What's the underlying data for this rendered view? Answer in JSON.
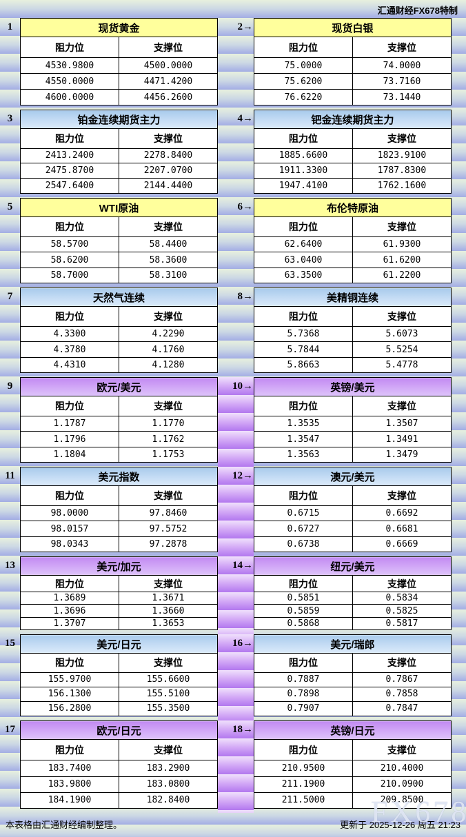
{
  "meta": {
    "top_right_label": "汇通财经FX678特制",
    "watermark": "FX678",
    "footer_left": "本表格由汇通财经编制整理。",
    "footer_right": "更新于 2025-12-26 周五 21:23"
  },
  "labels": {
    "resistance": "阻力位",
    "support": "支撑位"
  },
  "colors": {
    "title_yellow": "#ffff9c",
    "title_blue": "#b8d5f0",
    "title_purple": "#c48cf2",
    "stripe_green": "#e7f0de",
    "stripe_blue": "#a9b3e5",
    "stripe_purple": "#b77ff0",
    "cell_bg": "#ffffff",
    "border": "#000000"
  },
  "pairs": [
    {
      "left_label": "1",
      "right_label": "2→",
      "left": {
        "title": "现货黄金",
        "rows": [
          [
            "4530.9800",
            "4500.0000"
          ],
          [
            "4550.0000",
            "4471.4200"
          ],
          [
            "4600.0000",
            "4456.2600"
          ]
        ]
      },
      "right": {
        "title": "现货白银",
        "rows": [
          [
            "75.0000",
            "74.0000"
          ],
          [
            "75.6200",
            "73.7160"
          ],
          [
            "76.6220",
            "73.1440"
          ]
        ]
      }
    },
    {
      "left_label": "3",
      "right_label": "4→",
      "left": {
        "title": "铂金连续期货主力",
        "rows": [
          [
            "2413.2400",
            "2278.8400"
          ],
          [
            "2475.8700",
            "2207.0700"
          ],
          [
            "2547.6400",
            "2144.4400"
          ]
        ]
      },
      "right": {
        "title": "钯金连续期货主力",
        "rows": [
          [
            "1885.6600",
            "1823.9100"
          ],
          [
            "1911.3300",
            "1787.8300"
          ],
          [
            "1947.4100",
            "1762.1600"
          ]
        ]
      }
    },
    {
      "left_label": "5",
      "right_label": "6→",
      "left": {
        "title": "WTI原油",
        "rows": [
          [
            "58.5700",
            "58.4400"
          ],
          [
            "58.6200",
            "58.3600"
          ],
          [
            "58.7000",
            "58.3100"
          ]
        ]
      },
      "right": {
        "title": "布伦特原油",
        "rows": [
          [
            "62.6400",
            "61.9300"
          ],
          [
            "63.0400",
            "61.6200"
          ],
          [
            "63.3500",
            "61.2200"
          ]
        ]
      }
    },
    {
      "left_label": "7",
      "right_label": "8→",
      "left": {
        "title": "天然气连续",
        "rows": [
          [
            "4.3300",
            "4.2290"
          ],
          [
            "4.3780",
            "4.1760"
          ],
          [
            "4.4310",
            "4.1280"
          ]
        ]
      },
      "right": {
        "title": "美精铜连续",
        "rows": [
          [
            "5.7368",
            "5.6073"
          ],
          [
            "5.7844",
            "5.5254"
          ],
          [
            "5.8663",
            "5.4778"
          ]
        ]
      }
    },
    {
      "left_label": "9",
      "right_label": "10→",
      "left": {
        "title": "欧元/美元",
        "rows": [
          [
            "1.1787",
            "1.1770"
          ],
          [
            "1.1796",
            "1.1762"
          ],
          [
            "1.1804",
            "1.1753"
          ]
        ]
      },
      "right": {
        "title": "英镑/美元",
        "rows": [
          [
            "1.3535",
            "1.3507"
          ],
          [
            "1.3547",
            "1.3491"
          ],
          [
            "1.3563",
            "1.3479"
          ]
        ]
      }
    },
    {
      "left_label": "11",
      "right_label": "12→",
      "left": {
        "title": "美元指数",
        "rows": [
          [
            "98.0000",
            "97.8460"
          ],
          [
            "98.0157",
            "97.5752"
          ],
          [
            "98.0343",
            "97.2878"
          ]
        ]
      },
      "right": {
        "title": "澳元/美元",
        "rows": [
          [
            "0.6715",
            "0.6692"
          ],
          [
            "0.6727",
            "0.6681"
          ],
          [
            "0.6738",
            "0.6669"
          ]
        ]
      }
    },
    {
      "left_label": "13",
      "right_label": "14→",
      "left": {
        "title": "美元/加元",
        "rows": [
          [
            "1.3689",
            "1.3671"
          ],
          [
            "1.3696",
            "1.3660"
          ],
          [
            "1.3707",
            "1.3653"
          ]
        ]
      },
      "right": {
        "title": "纽元/美元",
        "rows": [
          [
            "0.5851",
            "0.5834"
          ],
          [
            "0.5859",
            "0.5825"
          ],
          [
            "0.5868",
            "0.5817"
          ]
        ]
      }
    },
    {
      "left_label": "15",
      "right_label": "16→",
      "left": {
        "title": "美元/日元",
        "rows": [
          [
            "155.9700",
            "155.6600"
          ],
          [
            "156.1300",
            "155.5100"
          ],
          [
            "156.2800",
            "155.3500"
          ]
        ]
      },
      "right": {
        "title": "美元/瑞郎",
        "rows": [
          [
            "0.7887",
            "0.7867"
          ],
          [
            "0.7898",
            "0.7858"
          ],
          [
            "0.7907",
            "0.7847"
          ]
        ]
      }
    },
    {
      "left_label": "17",
      "right_label": "18→",
      "left": {
        "title": "欧元/日元",
        "rows": [
          [
            "183.7400",
            "183.2900"
          ],
          [
            "183.9800",
            "183.0800"
          ],
          [
            "184.1900",
            "182.8400"
          ]
        ]
      },
      "right": {
        "title": "英镑/日元",
        "rows": [
          [
            "210.9500",
            "210.4000"
          ],
          [
            "211.1900",
            "210.0900"
          ],
          [
            "211.5000",
            "209.8500"
          ]
        ]
      }
    }
  ]
}
